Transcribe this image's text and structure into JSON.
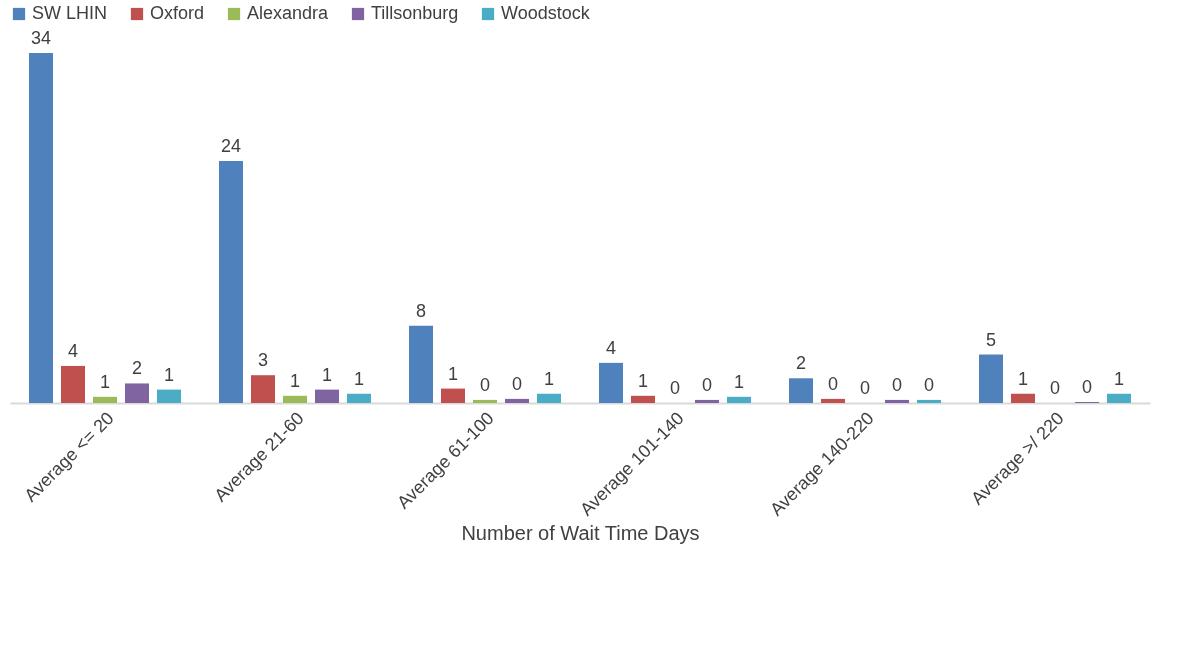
{
  "chart_data": {
    "type": "bar",
    "xlabel": "Number of Wait Time Days",
    "categories": [
      "Average <= 20",
      "Average 21-60",
      "Average 61-100",
      "Average 101-140",
      "Average 140-220",
      "Average >/ 220"
    ],
    "series": [
      {
        "name": "SW LHIN",
        "color": "#4f81bd",
        "values": [
          34.0,
          23.5,
          7.5,
          3.9,
          2.4,
          4.7
        ],
        "value_labels": [
          "34",
          "24",
          "8",
          "4",
          "2",
          "5"
        ]
      },
      {
        "name": "Oxford",
        "color": "#c0504d",
        "values": [
          3.6,
          2.7,
          1.4,
          0.7,
          0.4,
          0.9
        ],
        "value_labels": [
          "4",
          "3",
          "1",
          "1",
          "0",
          "1"
        ]
      },
      {
        "name": "Alexandra",
        "color": "#9bbb59",
        "values": [
          0.6,
          0.7,
          0.3,
          0,
          0,
          0
        ],
        "value_labels": [
          "1",
          "1",
          "0",
          "0",
          "0",
          "0"
        ]
      },
      {
        "name": "Tillsonburg",
        "color": "#8064a2",
        "values": [
          1.9,
          1.3,
          0.4,
          0.3,
          0.3,
          0.1
        ],
        "value_labels": [
          "2",
          "1",
          "0",
          "0",
          "0",
          "0"
        ]
      },
      {
        "name": "Woodstock",
        "color": "#4bacc6",
        "values": [
          1.3,
          0.9,
          0.9,
          0.6,
          0.3,
          0.9
        ],
        "value_labels": [
          "1",
          "1",
          "1",
          "1",
          "0",
          "1"
        ]
      }
    ],
    "tick_labels": "x",
    "grid": false,
    "legend": "top"
  }
}
